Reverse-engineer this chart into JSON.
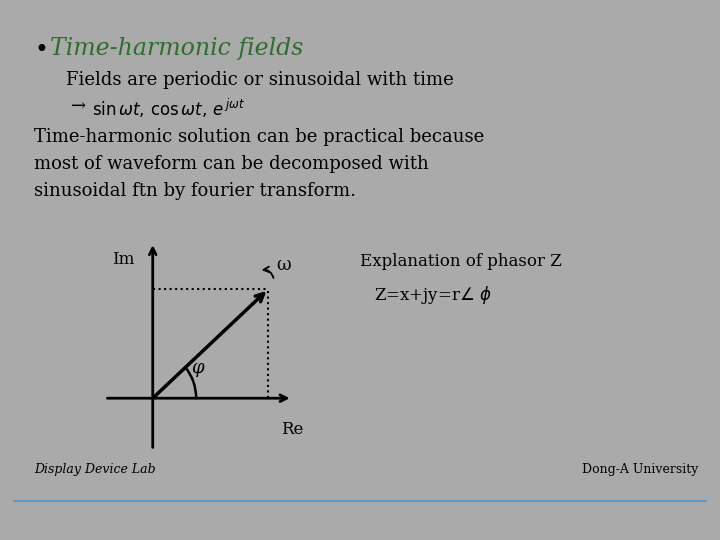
{
  "outer_bg": "#aaaaaa",
  "slide_bg": "#ffffff",
  "title": "Time-harmonic fields",
  "title_color": "#2d6e2d",
  "subtitle": "Fields are periodic or sinusoidal with time",
  "body_text_line1": "Time-harmonic solution can be practical because",
  "body_text_line2": "most of waveform can be decomposed with",
  "body_text_line3": "sinusoidal ftn by fourier transform.",
  "phasor_title": "Explanation of phasor Z",
  "phasor_formula": "Z=x+jy=r∠ φ",
  "im_label": "Im",
  "re_label": "Re",
  "omega_label": "ω",
  "phi_label": "φ",
  "footer_left": "Display Device Lab",
  "footer_right": "Dong-A University",
  "footer_line_color": "#5599cc",
  "text_color": "#000000"
}
